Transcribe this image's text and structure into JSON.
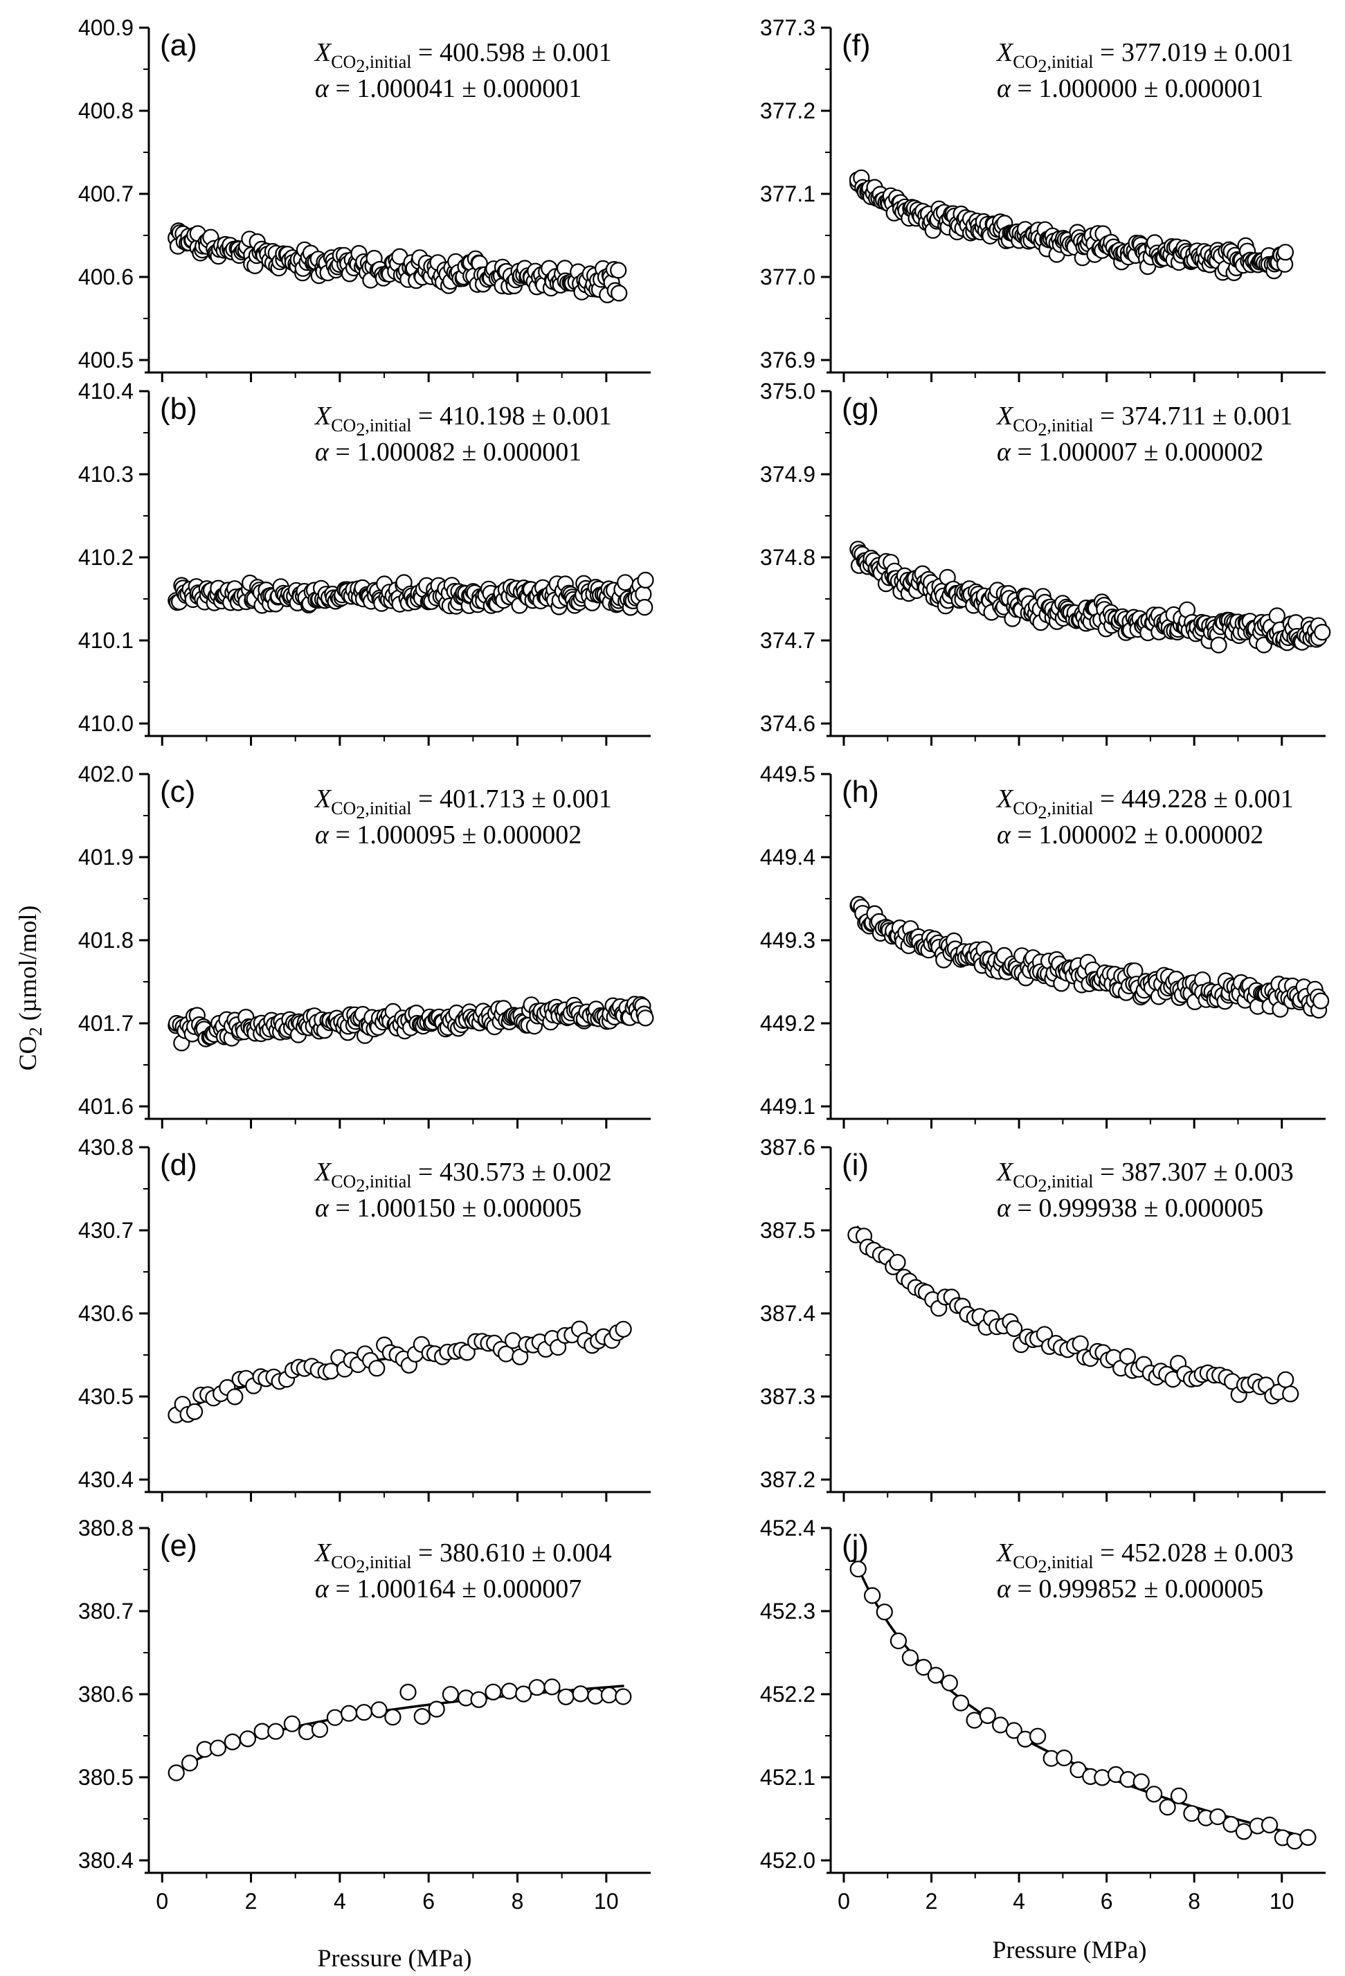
{
  "figure": {
    "ylabel_main": "CO",
    "ylabel_sub": "2",
    "ylabel_unit": " (µmol/mol)",
    "xlabel": "Pressure (MPa)"
  },
  "chart_data": [
    {
      "id": "a",
      "label": "(a)",
      "type": "scatter",
      "xlim": [
        -0.3,
        11
      ],
      "ylim": [
        400.5,
        400.9
      ],
      "yticks": [
        "400.5",
        "400.6",
        "400.7",
        "400.8",
        "400.9"
      ],
      "xticks": [
        "0",
        "2",
        "4",
        "6",
        "8",
        "10"
      ],
      "x_initial": "400.598 ± 0.001",
      "alpha": "1.000041 ± 0.000001",
      "points": {
        "x_start": 0.3,
        "x_end": 10.3,
        "n": 250,
        "fit": "log",
        "y_start": 400.65,
        "y_end": 400.595,
        "noise": 0.011
      }
    },
    {
      "id": "b",
      "label": "(b)",
      "type": "scatter",
      "xlim": [
        -0.3,
        11
      ],
      "ylim": [
        410.0,
        410.4
      ],
      "yticks": [
        "410.0",
        "410.1",
        "410.2",
        "410.3",
        "410.4"
      ],
      "xticks": [
        "0",
        "2",
        "4",
        "6",
        "8",
        "10"
      ],
      "x_initial": "410.198 ± 0.001",
      "alpha": "1.000082 ± 0.000001",
      "points": {
        "x_start": 0.3,
        "x_end": 10.9,
        "n": 260,
        "fit": "flat",
        "y_start": 410.153,
        "y_end": 410.155,
        "noise": 0.009
      }
    },
    {
      "id": "c",
      "label": "(c)",
      "type": "scatter",
      "xlim": [
        -0.3,
        11
      ],
      "ylim": [
        401.6,
        402.0
      ],
      "yticks": [
        "401.6",
        "401.7",
        "401.8",
        "401.9",
        "402.0"
      ],
      "xticks": [
        "0",
        "2",
        "4",
        "6",
        "8",
        "10"
      ],
      "x_initial": "401.713 ± 0.001",
      "alpha": "1.000095 ± 0.000002",
      "points": {
        "x_start": 0.3,
        "x_end": 10.9,
        "n": 240,
        "fit": "linear",
        "y_start": 401.692,
        "y_end": 401.713,
        "noise": 0.009
      }
    },
    {
      "id": "d",
      "label": "(d)",
      "type": "scatter",
      "xlim": [
        -0.3,
        11
      ],
      "ylim": [
        430.4,
        430.8
      ],
      "yticks": [
        "430.4",
        "430.5",
        "430.6",
        "430.7",
        "430.8"
      ],
      "xticks": [
        "0",
        "2",
        "4",
        "6",
        "8",
        "10"
      ],
      "x_initial": "430.573 ± 0.002",
      "alpha": "1.000150 ± 0.000005",
      "points": {
        "x_start": 0.3,
        "x_end": 10.4,
        "n": 70,
        "fit": "log",
        "y_start": 430.475,
        "y_end": 430.573,
        "noise": 0.009
      }
    },
    {
      "id": "e",
      "label": "(e)",
      "type": "scatter",
      "xlim": [
        -0.3,
        11
      ],
      "ylim": [
        380.4,
        380.8
      ],
      "yticks": [
        "380.4",
        "380.5",
        "380.6",
        "380.7",
        "380.8"
      ],
      "xticks": [
        "0",
        "2",
        "4",
        "6",
        "8",
        "10"
      ],
      "x_initial": "380.610 ± 0.004",
      "alpha": "1.000164 ± 0.000007",
      "points": {
        "x_start": 0.3,
        "x_end": 10.4,
        "n": 32,
        "fit": "log",
        "y_start": 380.505,
        "y_end": 380.61,
        "noise": 0.011
      }
    },
    {
      "id": "f",
      "label": "(f)",
      "type": "scatter",
      "xlim": [
        -0.3,
        11
      ],
      "ylim": [
        376.9,
        377.3
      ],
      "yticks": [
        "376.9",
        "377.0",
        "377.1",
        "377.2",
        "377.3"
      ],
      "xticks": [
        "0",
        "2",
        "4",
        "6",
        "8",
        "10"
      ],
      "x_initial": "377.019 ± 0.001",
      "alpha": "1.000000 ± 0.000001",
      "points": {
        "x_start": 0.3,
        "x_end": 10.1,
        "n": 260,
        "fit": "log",
        "y_start": 377.115,
        "y_end": 377.015,
        "noise": 0.01
      }
    },
    {
      "id": "g",
      "label": "(g)",
      "type": "scatter",
      "xlim": [
        -0.3,
        11
      ],
      "ylim": [
        374.6,
        375.0
      ],
      "yticks": [
        "374.6",
        "374.7",
        "374.8",
        "374.9",
        "375.0"
      ],
      "xticks": [
        "0",
        "2",
        "4",
        "6",
        "8",
        "10"
      ],
      "x_initial": "374.711 ± 0.001",
      "alpha": "1.000007 ± 0.000002",
      "points": {
        "x_start": 0.3,
        "x_end": 10.9,
        "n": 280,
        "fit": "log",
        "y_start": 374.8,
        "y_end": 374.705,
        "noise": 0.011
      }
    },
    {
      "id": "h",
      "label": "(h)",
      "type": "scatter",
      "xlim": [
        -0.3,
        11
      ],
      "ylim": [
        449.1,
        449.5
      ],
      "yticks": [
        "449.1",
        "449.2",
        "449.3",
        "449.4",
        "449.5"
      ],
      "xticks": [
        "0",
        "2",
        "4",
        "6",
        "8",
        "10"
      ],
      "x_initial": "449.228 ± 0.001",
      "alpha": "1.000002 ±   0.000002",
      "points": {
        "x_start": 0.3,
        "x_end": 10.9,
        "n": 230,
        "fit": "log",
        "y_start": 449.335,
        "y_end": 449.228,
        "noise": 0.011
      }
    },
    {
      "id": "i",
      "label": "(i)",
      "type": "scatter",
      "xlim": [
        -0.3,
        11
      ],
      "ylim": [
        387.2,
        387.6
      ],
      "yticks": [
        "387.2",
        "387.3",
        "387.4",
        "387.5",
        "387.6"
      ],
      "xticks": [
        "0",
        "2",
        "4",
        "6",
        "8",
        "10"
      ],
      "x_initial": "387.307 ± 0.003",
      "alpha": "0.999938 ± 0.000005",
      "points": {
        "x_start": 0.3,
        "x_end": 10.2,
        "n": 75,
        "fit": "log",
        "y_start": 387.505,
        "y_end": 387.307,
        "noise": 0.01
      }
    },
    {
      "id": "j",
      "label": "(j)",
      "type": "scatter",
      "xlim": [
        -0.3,
        11
      ],
      "ylim": [
        452.0,
        452.4
      ],
      "yticks": [
        "452.0",
        "452.1",
        "452.2",
        "452.3",
        "452.4"
      ],
      "xticks": [
        "0",
        "2",
        "4",
        "6",
        "8",
        "10"
      ],
      "x_initial": "452.028 ± 0.003",
      "alpha": "0.999852 ± 0.000005",
      "points": {
        "x_start": 0.35,
        "x_end": 10.6,
        "n": 36,
        "fit": "log",
        "y_start": 452.35,
        "y_end": 452.028,
        "noise": 0.009
      }
    }
  ]
}
